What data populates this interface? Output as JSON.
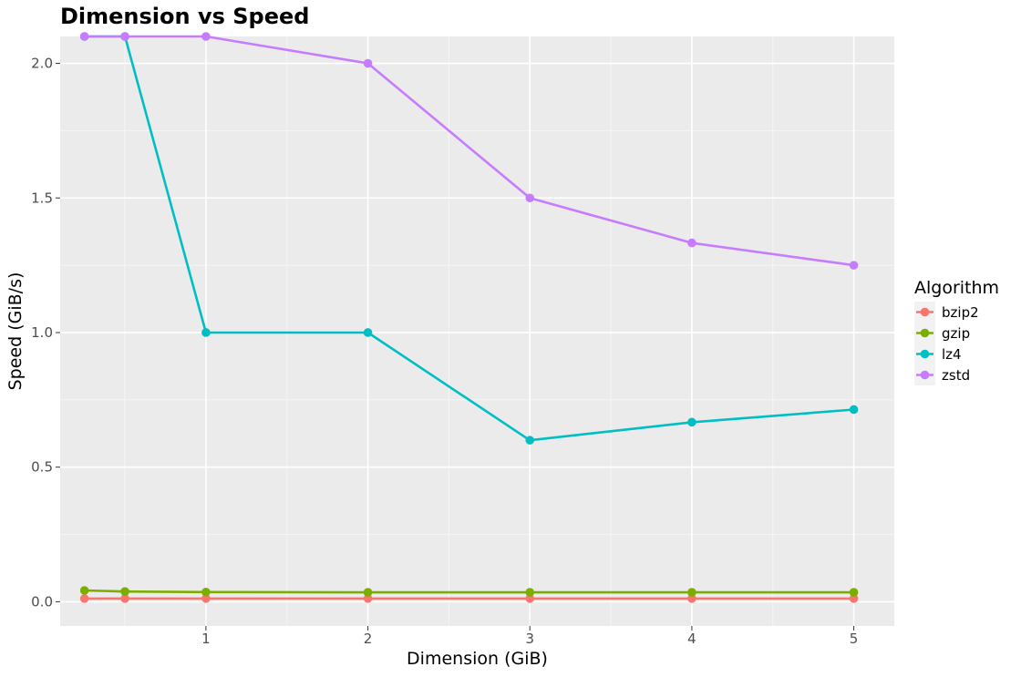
{
  "chart_data": {
    "type": "line",
    "title": "Dimension vs Speed",
    "xlabel": "Dimension (GiB)",
    "ylabel": "Speed (GiB/s)",
    "xlim": [
      0.1,
      5.25
    ],
    "ylim": [
      -0.09,
      2.1
    ],
    "x_ticks": [
      1,
      2,
      3,
      4,
      5
    ],
    "x_tick_labels": [
      "1",
      "2",
      "3",
      "4",
      "5"
    ],
    "y_ticks": [
      0.0,
      0.5,
      1.0,
      1.5,
      2.0
    ],
    "y_tick_labels": [
      "0.0",
      "0.5",
      "1.0",
      "1.5",
      "2.0"
    ],
    "grid": true,
    "legend": {
      "title": "Algorithm",
      "position": "right"
    },
    "series": [
      {
        "name": "bzip2",
        "color": "#F8766D",
        "x": [
          0.25,
          0.5,
          1,
          2,
          3,
          4,
          5
        ],
        "y": [
          0.012,
          0.012,
          0.012,
          0.012,
          0.012,
          0.012,
          0.012
        ]
      },
      {
        "name": "gzip",
        "color": "#7CAE00",
        "x": [
          0.25,
          0.5,
          1,
          2,
          3,
          4,
          5
        ],
        "y": [
          0.042,
          0.038,
          0.036,
          0.035,
          0.035,
          0.035,
          0.035
        ]
      },
      {
        "name": "lz4",
        "color": "#00BFC4",
        "x": [
          0.25,
          0.5,
          1,
          2,
          3,
          4,
          5
        ],
        "y": [
          2.1,
          2.1,
          1.0,
          1.0,
          0.6,
          0.667,
          0.714
        ]
      },
      {
        "name": "zstd",
        "color": "#C77CFF",
        "x": [
          0.25,
          0.5,
          1,
          2,
          3,
          4,
          5
        ],
        "y": [
          2.1,
          2.1,
          2.1,
          2.0,
          1.5,
          1.333,
          1.25
        ]
      }
    ]
  },
  "style": {
    "panel_background": "#EBEBEB",
    "major_grid_color": "#FFFFFF",
    "minor_grid_color": "#F5F5F5"
  }
}
